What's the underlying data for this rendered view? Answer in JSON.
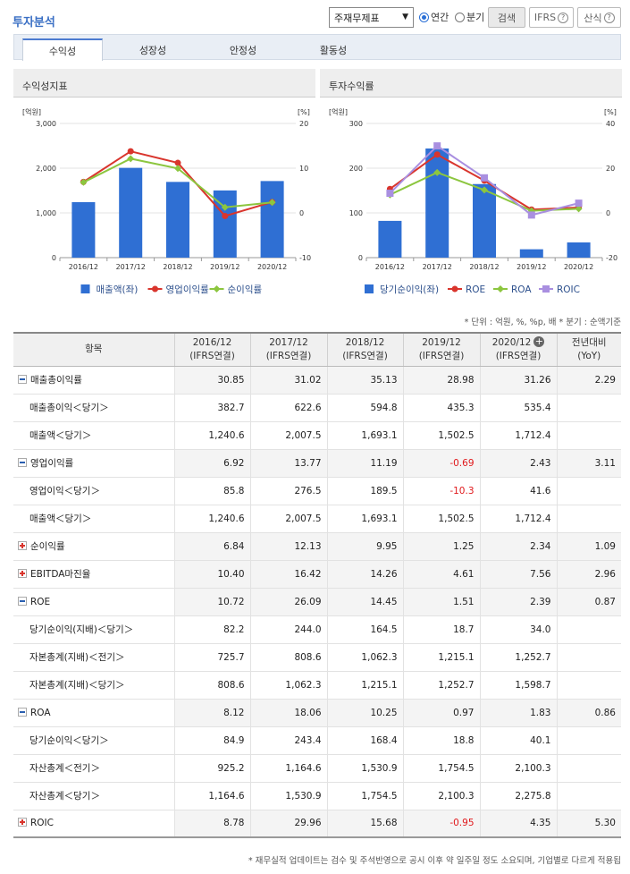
{
  "header": {
    "title": "투자분석",
    "report_select": "주재무제표",
    "radio_annual": "연간",
    "radio_quarter": "분기",
    "search_label": "검색",
    "ifrs_label": "IFRS",
    "formula_label": "산식",
    "help_glyph": "?"
  },
  "tabs": [
    {
      "label": "수익성"
    },
    {
      "label": "성장성"
    },
    {
      "label": "안정성"
    },
    {
      "label": "활동성"
    }
  ],
  "panels": {
    "left_title": "수익성지표",
    "right_title": "투자수익률"
  },
  "chart_data": [
    {
      "type": "bar",
      "title": "수익성지표",
      "categories": [
        "2016/12",
        "2017/12",
        "2018/12",
        "2019/12",
        "2020/12"
      ],
      "left_axis": {
        "unit": "[억원]",
        "ticks": [
          "3,000",
          "2,000",
          "1,000",
          "0"
        ],
        "ylim": [
          0,
          3000
        ]
      },
      "right_axis": {
        "unit": "[%]",
        "ticks": [
          "20",
          "10",
          "0",
          "-10"
        ],
        "ylim": [
          -10,
          20
        ]
      },
      "series": [
        {
          "name": "매출액(좌)",
          "kind": "bar",
          "axis": "left",
          "color": "#2f6fd3",
          "values": [
            1240.6,
            2007.5,
            1693.1,
            1502.5,
            1712.4
          ]
        },
        {
          "name": "영업이익률",
          "kind": "line",
          "axis": "right",
          "color": "#d9352d",
          "values": [
            6.92,
            13.77,
            11.19,
            -0.69,
            2.43
          ]
        },
        {
          "name": "순이익률",
          "kind": "line",
          "axis": "right",
          "color": "#8cc63f",
          "values": [
            6.84,
            12.13,
            9.95,
            1.25,
            2.34
          ]
        }
      ],
      "legend": "bottom"
    },
    {
      "type": "bar",
      "title": "투자수익률",
      "categories": [
        "2016/12",
        "2017/12",
        "2018/12",
        "2019/12",
        "2020/12"
      ],
      "left_axis": {
        "unit": "[억원]",
        "ticks": [
          "300",
          "200",
          "100",
          "0"
        ],
        "ylim": [
          0,
          300
        ]
      },
      "right_axis": {
        "unit": "[%]",
        "ticks": [
          "40",
          "20",
          "0",
          "-20"
        ],
        "ylim": [
          -20,
          40
        ]
      },
      "series": [
        {
          "name": "당기순이익(좌)",
          "kind": "bar",
          "axis": "left",
          "color": "#2f6fd3",
          "values": [
            82.2,
            244.0,
            164.5,
            18.7,
            34.0
          ]
        },
        {
          "name": "ROE",
          "kind": "line",
          "axis": "right",
          "color": "#d9352d",
          "values": [
            10.72,
            26.09,
            14.45,
            1.51,
            2.39
          ]
        },
        {
          "name": "ROA",
          "kind": "line",
          "axis": "right",
          "color": "#8cc63f",
          "values": [
            8.12,
            18.06,
            10.25,
            0.97,
            1.83
          ]
        },
        {
          "name": "ROIC",
          "kind": "line",
          "axis": "right",
          "color": "#a98fe0",
          "values": [
            8.78,
            29.96,
            15.68,
            -0.95,
            4.35
          ]
        }
      ],
      "legend": "bottom"
    }
  ],
  "unit_note": "* 단위 : 억원, %, %p, 배   * 분기 : 순액기준",
  "table": {
    "headers": [
      {
        "line1": "항목",
        "line2": ""
      },
      {
        "line1": "2016/12",
        "line2": "(IFRS연결)"
      },
      {
        "line1": "2017/12",
        "line2": "(IFRS연결)"
      },
      {
        "line1": "2018/12",
        "line2": "(IFRS연결)"
      },
      {
        "line1": "2019/12",
        "line2": "(IFRS연결)"
      },
      {
        "line1": "2020/12",
        "line2": "(IFRS연결)"
      },
      {
        "line1": "전년대비",
        "line2": "(YoY)"
      }
    ],
    "rows": [
      {
        "name": "매출총이익률",
        "level": "main",
        "toggle": "minus",
        "values": [
          "30.85",
          "31.02",
          "35.13",
          "28.98",
          "31.26"
        ],
        "yoy": "2.29"
      },
      {
        "name": "매출총이익＜당기＞",
        "level": "sub",
        "values": [
          "382.7",
          "622.6",
          "594.8",
          "435.3",
          "535.4"
        ],
        "yoy": ""
      },
      {
        "name": "매출액＜당기＞",
        "level": "sub",
        "values": [
          "1,240.6",
          "2,007.5",
          "1,693.1",
          "1,502.5",
          "1,712.4"
        ],
        "yoy": ""
      },
      {
        "name": "영업이익률",
        "level": "main",
        "toggle": "minus",
        "values": [
          "6.92",
          "13.77",
          "11.19",
          "-0.69",
          "2.43"
        ],
        "yoy": "3.11"
      },
      {
        "name": "영업이익＜당기＞",
        "level": "sub",
        "values": [
          "85.8",
          "276.5",
          "189.5",
          "-10.3",
          "41.6"
        ],
        "yoy": ""
      },
      {
        "name": "매출액＜당기＞",
        "level": "sub",
        "values": [
          "1,240.6",
          "2,007.5",
          "1,693.1",
          "1,502.5",
          "1,712.4"
        ],
        "yoy": ""
      },
      {
        "name": "순이익률",
        "level": "main",
        "toggle": "plus",
        "values": [
          "6.84",
          "12.13",
          "9.95",
          "1.25",
          "2.34"
        ],
        "yoy": "1.09"
      },
      {
        "name": "EBITDA마진율",
        "level": "main",
        "toggle": "plus",
        "values": [
          "10.40",
          "16.42",
          "14.26",
          "4.61",
          "7.56"
        ],
        "yoy": "2.96"
      },
      {
        "name": "ROE",
        "level": "main",
        "toggle": "minus",
        "values": [
          "10.72",
          "26.09",
          "14.45",
          "1.51",
          "2.39"
        ],
        "yoy": "0.87"
      },
      {
        "name": "당기순이익(지배)＜당기＞",
        "level": "sub",
        "values": [
          "82.2",
          "244.0",
          "164.5",
          "18.7",
          "34.0"
        ],
        "yoy": ""
      },
      {
        "name": "자본총계(지배)＜전기＞",
        "level": "sub",
        "values": [
          "725.7",
          "808.6",
          "1,062.3",
          "1,215.1",
          "1,252.7"
        ],
        "yoy": ""
      },
      {
        "name": "자본총계(지배)＜당기＞",
        "level": "sub",
        "values": [
          "808.6",
          "1,062.3",
          "1,215.1",
          "1,252.7",
          "1,598.7"
        ],
        "yoy": ""
      },
      {
        "name": "ROA",
        "level": "main",
        "toggle": "minus",
        "values": [
          "8.12",
          "18.06",
          "10.25",
          "0.97",
          "1.83"
        ],
        "yoy": "0.86"
      },
      {
        "name": "당기순이익＜당기＞",
        "level": "sub",
        "values": [
          "84.9",
          "243.4",
          "168.4",
          "18.8",
          "40.1"
        ],
        "yoy": ""
      },
      {
        "name": "자산총계＜전기＞",
        "level": "sub",
        "values": [
          "925.2",
          "1,164.6",
          "1,530.9",
          "1,754.5",
          "2,100.3"
        ],
        "yoy": ""
      },
      {
        "name": "자산총계＜당기＞",
        "level": "sub",
        "values": [
          "1,164.6",
          "1,530.9",
          "1,754.5",
          "2,100.3",
          "2,275.8"
        ],
        "yoy": ""
      },
      {
        "name": "ROIC",
        "level": "main",
        "toggle": "plus",
        "values": [
          "8.78",
          "29.96",
          "15.68",
          "-0.95",
          "4.35"
        ],
        "yoy": "5.30"
      }
    ]
  },
  "footnote": "* 재무실적 업데이트는 검수 및 주석반영으로 공시 이후 약 일주일 정도 소요되며, 기업별로 다르게 적용됩"
}
